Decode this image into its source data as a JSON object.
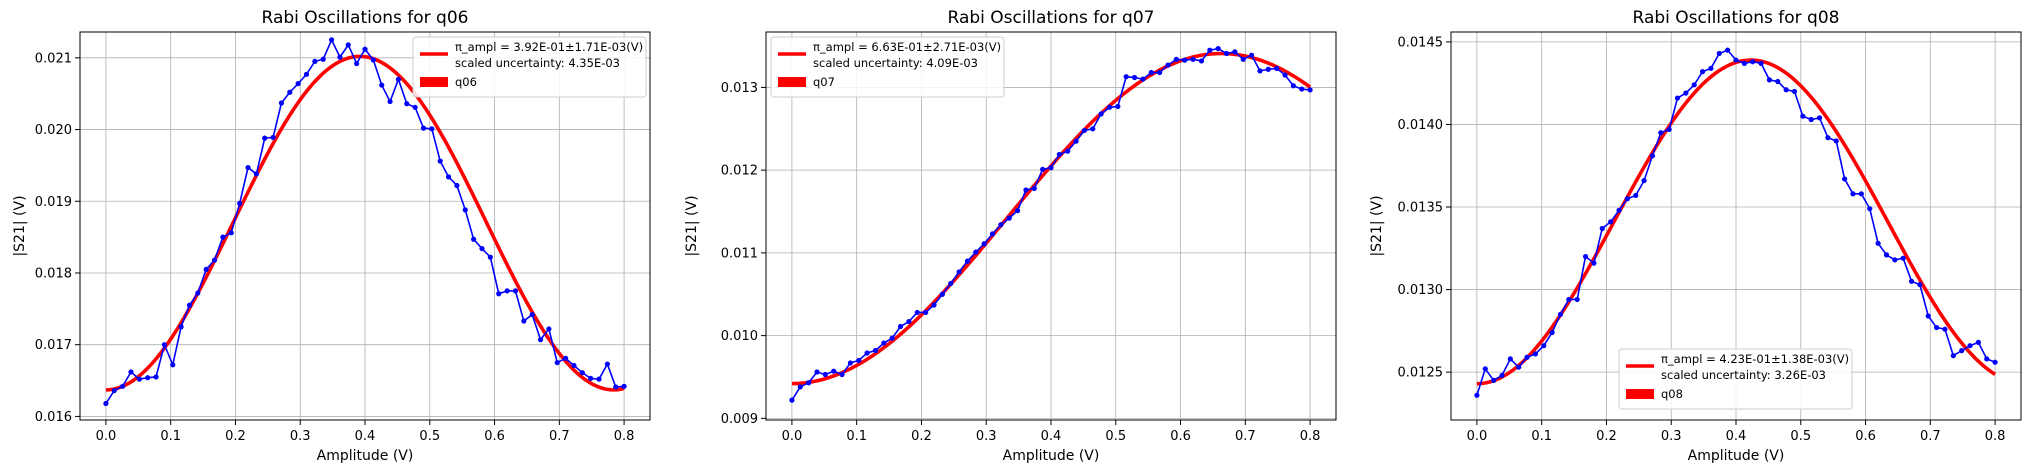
{
  "figure": {
    "width": 2026,
    "height": 470
  },
  "chart_data": [
    {
      "type": "line",
      "title": "Rabi Oscillations for q06",
      "xlabel": "Amplitude (V)",
      "ylabel": "|S21| (V)",
      "xlim": [
        -0.04,
        0.84
      ],
      "ylim": [
        0.01595,
        0.02136
      ],
      "xticks": [
        0.0,
        0.1,
        0.2,
        0.3,
        0.4,
        0.5,
        0.6,
        0.7,
        0.8
      ],
      "xtick_labels": [
        "0.0",
        "0.1",
        "0.2",
        "0.3",
        "0.4",
        "0.5",
        "0.6",
        "0.7",
        "0.8"
      ],
      "yticks": [
        0.016,
        0.017,
        0.018,
        0.019,
        0.02,
        0.021
      ],
      "ytick_labels": [
        "0.016",
        "0.017",
        "0.018",
        "0.019",
        "0.020",
        "0.021"
      ],
      "grid": true,
      "legend_loc": "upper right",
      "legend_lines": [
        "π_ampl = 3.92E-01±1.71E-03(V)",
        "scaled uncertainty: 4.35E-03"
      ],
      "legend_patch": "q06",
      "fit": {
        "color": "#ff0000",
        "center": 0.392,
        "min": 0.01637,
        "max": 0.02102,
        "period": 0.784
      },
      "data": {
        "color": "#0000ff",
        "x": [
          0.0,
          0.0129,
          0.0258,
          0.0387,
          0.0516,
          0.0645,
          0.0774,
          0.0903,
          0.1032,
          0.1161,
          0.129,
          0.1419,
          0.1548,
          0.1677,
          0.1806,
          0.1935,
          0.2065,
          0.2194,
          0.2323,
          0.2452,
          0.2581,
          0.271,
          0.2839,
          0.2968,
          0.3097,
          0.3226,
          0.3355,
          0.3484,
          0.3613,
          0.3742,
          0.3871,
          0.4,
          0.4129,
          0.4258,
          0.4387,
          0.4516,
          0.4645,
          0.4774,
          0.4903,
          0.5032,
          0.5161,
          0.529,
          0.5419,
          0.5548,
          0.5677,
          0.5806,
          0.5935,
          0.6065,
          0.6194,
          0.6323,
          0.6452,
          0.6581,
          0.671,
          0.6839,
          0.6968,
          0.7097,
          0.7226,
          0.7355,
          0.7484,
          0.7613,
          0.7742,
          0.7871,
          0.8
        ],
        "y": [
          0.01618,
          0.01636,
          0.01642,
          0.01662,
          0.01652,
          0.01654,
          0.01655,
          0.017,
          0.01672,
          0.01725,
          0.01755,
          0.01772,
          0.01805,
          0.01818,
          0.0185,
          0.01856,
          0.01897,
          0.01947,
          0.01938,
          0.01988,
          0.01989,
          0.02037,
          0.02052,
          0.02064,
          0.02077,
          0.02095,
          0.02098,
          0.02125,
          0.02101,
          0.02118,
          0.02092,
          0.02112,
          0.02097,
          0.02062,
          0.02039,
          0.0207,
          0.02036,
          0.02031,
          0.02002,
          0.02001,
          0.01956,
          0.01934,
          0.01922,
          0.01888,
          0.01847,
          0.01834,
          0.01822,
          0.01771,
          0.01775,
          0.01775,
          0.01733,
          0.01742,
          0.01707,
          0.01722,
          0.01675,
          0.01681,
          0.01671,
          0.01661,
          0.01653,
          0.01652,
          0.01673,
          0.01641,
          0.01642
        ]
      }
    },
    {
      "type": "line",
      "title": "Rabi Oscillations for q07",
      "xlabel": "Amplitude (V)",
      "ylabel": "|S21| (V)",
      "xlim": [
        -0.04,
        0.84
      ],
      "ylim": [
        0.00898,
        0.01367
      ],
      "xticks": [
        0.0,
        0.1,
        0.2,
        0.3,
        0.4,
        0.5,
        0.6,
        0.7,
        0.8
      ],
      "xtick_labels": [
        "0.0",
        "0.1",
        "0.2",
        "0.3",
        "0.4",
        "0.5",
        "0.6",
        "0.7",
        "0.8"
      ],
      "yticks": [
        0.009,
        0.01,
        0.011,
        0.012,
        0.013
      ],
      "ytick_labels": [
        "0.009",
        "0.010",
        "0.011",
        "0.012",
        "0.013"
      ],
      "grid": true,
      "legend_loc": "upper left",
      "legend_lines": [
        "π_ampl = 6.63E-01±2.71E-03(V)",
        "scaled uncertainty: 4.09E-03"
      ],
      "legend_patch": "q07",
      "fit": {
        "color": "#ff0000",
        "center": 0.663,
        "min": 0.00942,
        "max": 0.01341,
        "period": 1.326
      },
      "data": {
        "color": "#0000ff",
        "x": [
          0.0,
          0.0129,
          0.0258,
          0.0387,
          0.0516,
          0.0645,
          0.0774,
          0.0903,
          0.1032,
          0.1161,
          0.129,
          0.1419,
          0.1548,
          0.1677,
          0.1806,
          0.1935,
          0.2065,
          0.2194,
          0.2323,
          0.2452,
          0.2581,
          0.271,
          0.2839,
          0.2968,
          0.3097,
          0.3226,
          0.3355,
          0.3484,
          0.3613,
          0.3742,
          0.3871,
          0.4,
          0.4129,
          0.4258,
          0.4387,
          0.4516,
          0.4645,
          0.4774,
          0.4903,
          0.5032,
          0.5161,
          0.529,
          0.5419,
          0.5548,
          0.5677,
          0.5806,
          0.5935,
          0.6065,
          0.6194,
          0.6323,
          0.6452,
          0.6581,
          0.671,
          0.6839,
          0.6968,
          0.7097,
          0.7226,
          0.7355,
          0.7484,
          0.7613,
          0.7742,
          0.7871,
          0.8
        ],
        "y": [
          0.00922,
          0.00938,
          0.00943,
          0.00956,
          0.00953,
          0.00957,
          0.00953,
          0.00967,
          0.0097,
          0.00979,
          0.00982,
          0.00991,
          0.00997,
          0.01011,
          0.01017,
          0.01028,
          0.01028,
          0.01037,
          0.0105,
          0.01063,
          0.01077,
          0.0109,
          0.01101,
          0.01111,
          0.01123,
          0.01134,
          0.01142,
          0.01151,
          0.01176,
          0.01178,
          0.01201,
          0.01203,
          0.01219,
          0.01223,
          0.01235,
          0.01248,
          0.0125,
          0.01268,
          0.01276,
          0.01277,
          0.01313,
          0.01312,
          0.0131,
          0.01318,
          0.01318,
          0.01327,
          0.01334,
          0.01333,
          0.01334,
          0.01332,
          0.01345,
          0.01347,
          0.01341,
          0.01343,
          0.01334,
          0.01339,
          0.0132,
          0.01322,
          0.01323,
          0.01315,
          0.01302,
          0.01298,
          0.01297
        ]
      }
    },
    {
      "type": "line",
      "title": "Rabi Oscillations for q08",
      "xlabel": "Amplitude (V)",
      "ylabel": "|S21| (V)",
      "xlim": [
        -0.04,
        0.84
      ],
      "ylim": [
        0.01221,
        0.01456
      ],
      "xticks": [
        0.0,
        0.1,
        0.2,
        0.3,
        0.4,
        0.5,
        0.6,
        0.7,
        0.8
      ],
      "xtick_labels": [
        "0.0",
        "0.1",
        "0.2",
        "0.3",
        "0.4",
        "0.5",
        "0.6",
        "0.7",
        "0.8"
      ],
      "yticks": [
        0.0125,
        0.013,
        0.0135,
        0.014,
        0.0145
      ],
      "ytick_labels": [
        "0.0125",
        "0.0130",
        "0.0135",
        "0.0140",
        "0.0145"
      ],
      "grid": true,
      "legend_loc": "lower center",
      "legend_lines": [
        "π_ampl = 4.23E-01±1.38E-03(V)",
        "scaled uncertainty: 3.26E-03"
      ],
      "legend_patch": "q08",
      "fit": {
        "color": "#ff0000",
        "center": 0.423,
        "min": 0.01243,
        "max": 0.01439,
        "period": 0.846
      },
      "data": {
        "color": "#0000ff",
        "x": [
          0.0,
          0.0129,
          0.0258,
          0.0387,
          0.0516,
          0.0645,
          0.0774,
          0.0903,
          0.1032,
          0.1161,
          0.129,
          0.1419,
          0.1548,
          0.1677,
          0.1806,
          0.1935,
          0.2065,
          0.2194,
          0.2323,
          0.2452,
          0.2581,
          0.271,
          0.2839,
          0.2968,
          0.3097,
          0.3226,
          0.3355,
          0.3484,
          0.3613,
          0.3742,
          0.3871,
          0.4,
          0.4129,
          0.4258,
          0.4387,
          0.4516,
          0.4645,
          0.4774,
          0.4903,
          0.5032,
          0.5161,
          0.529,
          0.5419,
          0.5548,
          0.5677,
          0.5806,
          0.5935,
          0.6065,
          0.6194,
          0.6323,
          0.6452,
          0.6581,
          0.671,
          0.6839,
          0.6968,
          0.7097,
          0.7226,
          0.7355,
          0.7484,
          0.7613,
          0.7742,
          0.7871,
          0.8
        ],
        "y": [
          0.01236,
          0.01252,
          0.01245,
          0.01248,
          0.01258,
          0.01253,
          0.01259,
          0.01261,
          0.01266,
          0.01274,
          0.01285,
          0.01294,
          0.01294,
          0.0132,
          0.01316,
          0.01337,
          0.01341,
          0.01348,
          0.01355,
          0.01357,
          0.01366,
          0.01381,
          0.01395,
          0.01397,
          0.01416,
          0.01419,
          0.01424,
          0.01432,
          0.01434,
          0.01443,
          0.01445,
          0.01439,
          0.01437,
          0.01438,
          0.01437,
          0.01427,
          0.01426,
          0.01421,
          0.0142,
          0.01405,
          0.01403,
          0.01404,
          0.01392,
          0.0139,
          0.01367,
          0.01358,
          0.01358,
          0.01349,
          0.01328,
          0.01321,
          0.01318,
          0.01319,
          0.01305,
          0.01303,
          0.01284,
          0.01277,
          0.01276,
          0.0126,
          0.01263,
          0.01266,
          0.01268,
          0.01258,
          0.01256
        ]
      }
    }
  ]
}
